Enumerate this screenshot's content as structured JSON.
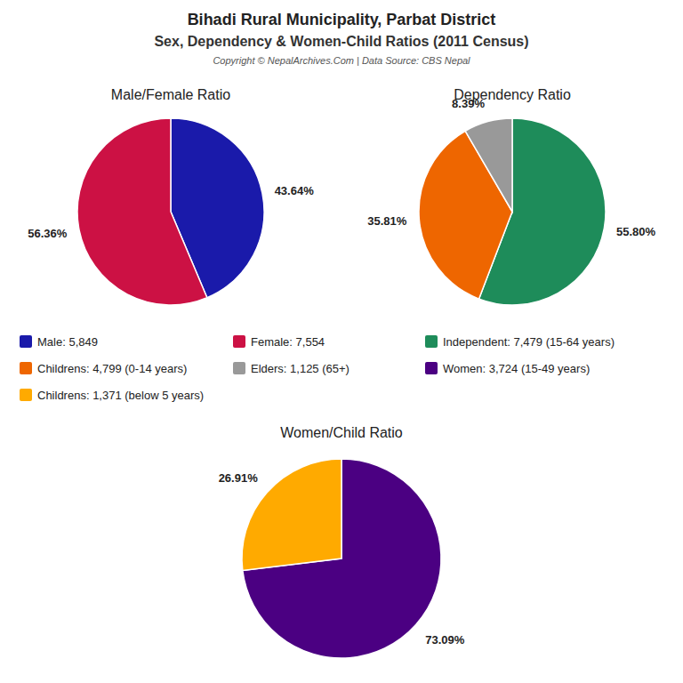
{
  "title": "Bihadi Rural Municipality, Parbat District",
  "subtitle": "Sex, Dependency & Women-Child Ratios (2011 Census)",
  "annotations": [
    "Copyright © NepalArchives.Com | Data Source: CBS Nepal"
  ],
  "chart_data": [
    {
      "type": "pie",
      "title": "Male/Female Ratio",
      "categories": [
        "Male: 5,849",
        "Female: 7,554"
      ],
      "values": [
        43.64,
        56.36
      ],
      "value_labels": [
        "43.64%",
        "56.36%"
      ],
      "colors": [
        "#1a1aaa",
        "#cc1144"
      ],
      "data_labels": true
    },
    {
      "type": "pie",
      "title": "Dependency Ratio",
      "categories": [
        "Independent: 7,479 (15-64 years)",
        "Childrens: 4,799 (0-14 years)",
        "Elders: 1,125 (65+)"
      ],
      "values": [
        55.8,
        35.81,
        8.39
      ],
      "value_labels": [
        "55.80%",
        "35.81%",
        "8.39%"
      ],
      "colors": [
        "#1e8c5a",
        "#ee6600",
        "#999999"
      ],
      "data_labels": true
    },
    {
      "type": "pie",
      "title": "Women/Child Ratio",
      "categories": [
        "Women: 3,724 (15-49 years)",
        "Childrens: 1,371 (below 5 years)"
      ],
      "values": [
        73.09,
        26.91
      ],
      "value_labels": [
        "73.09%",
        "26.91%"
      ],
      "colors": [
        "#4b0082",
        "#ffaa00"
      ],
      "data_labels": true
    }
  ]
}
